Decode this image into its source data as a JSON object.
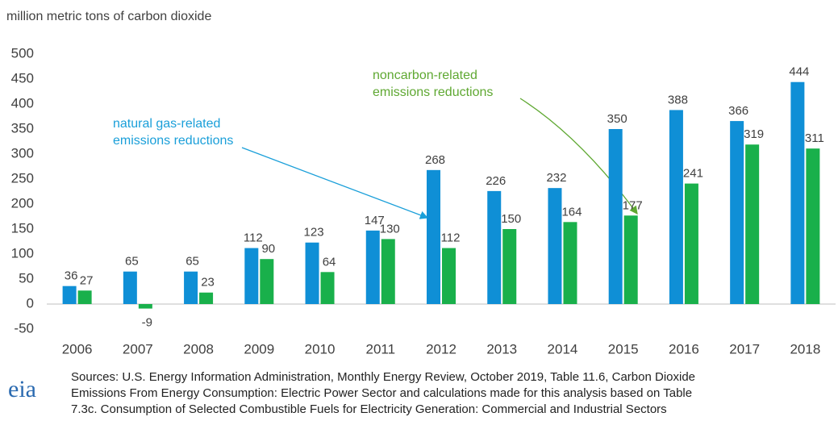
{
  "chart_data": {
    "type": "bar",
    "y_axis_label": "million metric tons of carbon dioxide",
    "categories": [
      "2006",
      "2007",
      "2008",
      "2009",
      "2010",
      "2011",
      "2012",
      "2013",
      "2014",
      "2015",
      "2016",
      "2017",
      "2018"
    ],
    "series": [
      {
        "color": "#0f8fd6",
        "values": [
          36,
          65,
          65,
          112,
          123,
          147,
          268,
          226,
          232,
          350,
          388,
          366,
          444
        ]
      },
      {
        "color": "#19b04b",
        "values": [
          27,
          -9,
          23,
          90,
          64,
          130,
          112,
          150,
          164,
          177,
          241,
          319,
          311
        ]
      }
    ],
    "ylim": [
      -50,
      500
    ],
    "yticks": [
      -50,
      0,
      50,
      100,
      150,
      200,
      250,
      300,
      350,
      400,
      450,
      500
    ],
    "grid": false,
    "annotations": [
      {
        "lines": [
          "natural gas-related",
          "emissions reductions"
        ],
        "color": "#1a9fd9"
      },
      {
        "lines": [
          "noncarbon-related",
          "emissions reductions"
        ],
        "color": "#5fa832"
      }
    ],
    "logo": "eia",
    "source_lines": [
      "Sources: U.S. Energy Information Administration, Monthly Energy Review, October 2019, Table 11.6, Carbon Dioxide",
      "Emissions From Energy Consumption: Electric Power Sector and calculations made for this analysis based on Table",
      "7.3c. Consumption of Selected Combustible Fuels for Electricity Generation: Commercial and Industrial Sectors"
    ]
  }
}
